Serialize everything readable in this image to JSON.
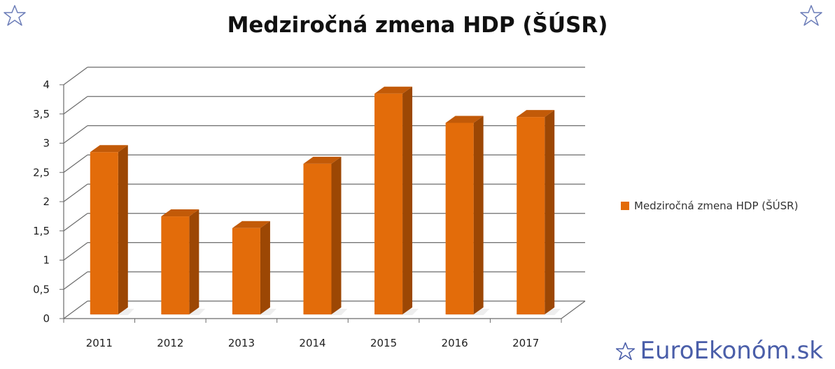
{
  "page": {
    "title": "Medziročná zmena HDP (ŠÚSR)",
    "brand_text": "EuroEkonóm.sk"
  },
  "icons": {
    "top_left": "star-icon",
    "top_right": "star-icon",
    "brand": "star-icon"
  },
  "colors": {
    "bar_front": "#e36c0a",
    "bar_side": "#9c4704",
    "bar_top": "#c25a08",
    "grid": "#6b6b6b",
    "brand": "#4a5ea9"
  },
  "chart_data": {
    "type": "bar",
    "title": "Medziročná zmena HDP (ŠÚSR)",
    "categories": [
      "2011",
      "2012",
      "2013",
      "2014",
      "2015",
      "2016",
      "2017"
    ],
    "series": [
      {
        "name": "Medziročná zmena HDP (ŠÚSR)",
        "values": [
          2.8,
          1.7,
          1.5,
          2.6,
          3.8,
          3.3,
          3.4
        ]
      }
    ],
    "y_ticks": [
      "0",
      "0,5",
      "1",
      "1,5",
      "2",
      "2,5",
      "3",
      "3,5",
      "4"
    ],
    "ylim": [
      0,
      4
    ],
    "grid": true,
    "three_d": true,
    "legend_position": "right"
  }
}
